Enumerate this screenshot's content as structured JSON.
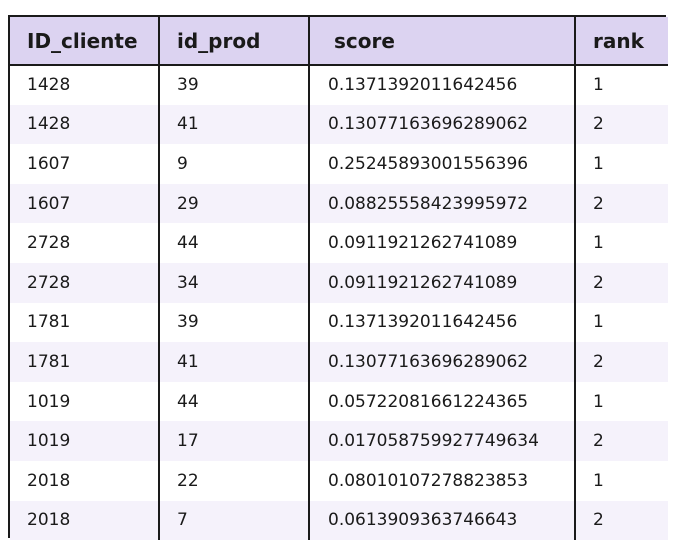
{
  "table": {
    "headers": [
      "ID_cliente",
      "id_prod",
      "score",
      "rank"
    ],
    "rows": [
      [
        "1428",
        "39",
        "0.1371392011642456",
        "1"
      ],
      [
        "1428",
        "41",
        "0.13077163696289062",
        "2"
      ],
      [
        "1607",
        "9",
        "0.25245893001556396",
        "1"
      ],
      [
        "1607",
        "29",
        "0.08825558423995972",
        "2"
      ],
      [
        "2728",
        "44",
        "0.0911921262741089",
        "1"
      ],
      [
        "2728",
        "34",
        "0.0911921262741089",
        "2"
      ],
      [
        "1781",
        "39",
        "0.1371392011642456",
        "1"
      ],
      [
        "1781",
        "41",
        "0.13077163696289062",
        "2"
      ],
      [
        "1019",
        "44",
        "0.05722081661224365",
        "1"
      ],
      [
        "1019",
        "17",
        "0.017058759927749634",
        "2"
      ],
      [
        "2018",
        "22",
        "0.08010107278823853",
        "1"
      ],
      [
        "2018",
        "7",
        "0.0613909363746643",
        "2"
      ]
    ]
  },
  "colors": {
    "header_bg": "#dcd3f1",
    "stripe_bg": "#f5f2fb",
    "border": "#1a1a1a"
  }
}
